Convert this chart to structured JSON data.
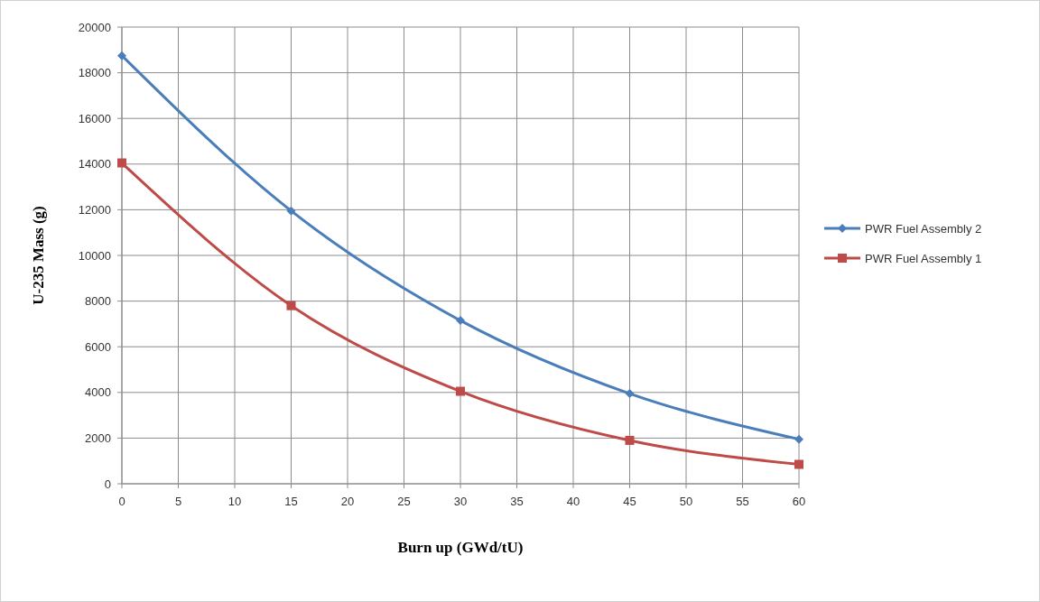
{
  "chart_data": {
    "type": "line",
    "xlabel": "Burn up (GWd/tU)",
    "ylabel": "U-235 Mass (g)",
    "x": [
      0,
      15,
      30,
      45,
      60
    ],
    "series": [
      {
        "name": "PWR Fuel Assembly 2",
        "color": "#4a7ebb",
        "marker": "diamond",
        "values": [
          18750,
          11950,
          7150,
          3950,
          1950
        ]
      },
      {
        "name": "PWR Fuel Assembly 1",
        "color": "#be4b48",
        "marker": "square",
        "values": [
          14050,
          7800,
          4050,
          1900,
          850
        ]
      }
    ],
    "xlim": [
      0,
      60
    ],
    "xticks": [
      0,
      5,
      10,
      15,
      20,
      25,
      30,
      35,
      40,
      45,
      50,
      55,
      60
    ],
    "ylim": [
      0,
      20000
    ],
    "yticks": [
      0,
      2000,
      4000,
      6000,
      8000,
      10000,
      12000,
      14000,
      16000,
      18000,
      20000
    ],
    "grid": true,
    "legend": "right",
    "line_style": "solid"
  }
}
